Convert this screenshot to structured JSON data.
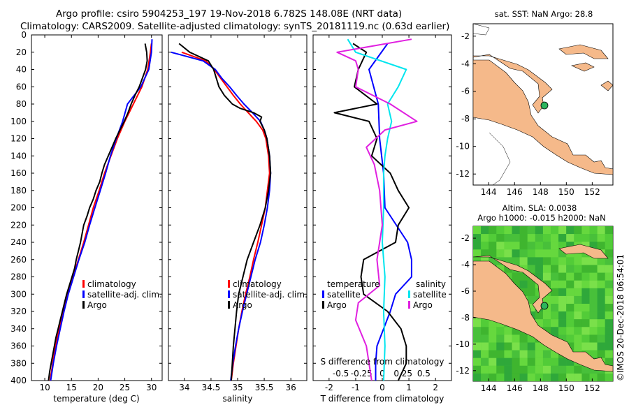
{
  "title": {
    "line1": "Argo profile: csiro 5904253_197 19-Nov-2018 6.782S 148.08E (NRT data)",
    "line2": "Climatology: CARS2009. Satellite-adjusted climatology: synTS_20181119.nc (0.63d earlier)"
  },
  "depth_ticks": [
    "0",
    "20",
    "40",
    "60",
    "80",
    "100",
    "120",
    "140",
    "160",
    "180",
    "200",
    "220",
    "240",
    "260",
    "280",
    "300",
    "320",
    "340",
    "360",
    "380",
    "400"
  ],
  "colors": {
    "climatology": "#ff0000",
    "satellite": "#0000ff",
    "argo": "#000000",
    "sat_salinity": "#00e5ee",
    "argo_salinity": "#e020e0",
    "land": "#f5b98a",
    "ocean_green": "#44c23a"
  },
  "chart_data": [
    {
      "type": "line",
      "name": "temperature",
      "xlabel": "temperature (deg C)",
      "ylabel": "",
      "xlim": [
        7.5,
        32
      ],
      "ylim": [
        400,
        0
      ],
      "x_ticks": [
        "10",
        "15",
        "20",
        "25",
        "30"
      ],
      "legend": [
        "climatology",
        "satellite-adj. clim.",
        "Argo"
      ],
      "series": [
        {
          "name": "climatology",
          "color": "#ff0000",
          "depth": [
            10,
            20,
            40,
            60,
            80,
            100,
            120,
            140,
            160,
            180,
            200,
            220,
            240,
            260,
            280,
            300,
            320,
            340,
            360,
            380,
            400
          ],
          "values": [
            30,
            29.8,
            29.3,
            28.2,
            26.6,
            25,
            23.6,
            22.4,
            21.2,
            20.2,
            19.1,
            18.2,
            17.3,
            16.3,
            15.3,
            14.3,
            13.4,
            12.7,
            12,
            11.5,
            11
          ]
        },
        {
          "name": "satellite-adj. clim.",
          "color": "#0000ff",
          "depth": [
            5,
            20,
            40,
            60,
            80,
            100,
            120,
            140,
            160,
            180,
            200,
            220,
            240,
            260,
            280,
            300,
            320,
            340,
            360,
            380,
            400
          ],
          "values": [
            30.1,
            30,
            29.5,
            28,
            25.5,
            24.6,
            23.4,
            22.3,
            21.4,
            20.4,
            19.4,
            18.4,
            17.5,
            16.4,
            15.4,
            14.4,
            13.6,
            12.9,
            12.2,
            11.6,
            11.1
          ]
        },
        {
          "name": "Argo",
          "color": "#000000",
          "depth": [
            10,
            20,
            30,
            40,
            50,
            60,
            70,
            80,
            90,
            100,
            110,
            120,
            130,
            140,
            150,
            160,
            170,
            180,
            190,
            200,
            210,
            220,
            230,
            240,
            250,
            260,
            270,
            280,
            290,
            300,
            310,
            320,
            330,
            340,
            350,
            360,
            370,
            380,
            390,
            400
          ],
          "values": [
            28.8,
            29.1,
            29.2,
            28.9,
            28.3,
            27.7,
            26.9,
            26.2,
            25.6,
            24.9,
            24.1,
            23.3,
            22.6,
            21.9,
            21.2,
            20.7,
            20.3,
            19.6,
            19.1,
            18.4,
            17.9,
            17.3,
            17,
            16.7,
            16.3,
            15.9,
            15.6,
            15.1,
            14.6,
            14.1,
            13.7,
            13.3,
            12.9,
            12.5,
            12.1,
            11.8,
            11.5,
            11.2,
            10.9,
            10.7
          ]
        }
      ]
    },
    {
      "type": "line",
      "name": "salinity",
      "xlabel": "salinity",
      "ylabel": "",
      "xlim": [
        33.7,
        36.3
      ],
      "ylim": [
        400,
        0
      ],
      "x_ticks": [
        "34",
        "34.5",
        "35",
        "35.5",
        "36"
      ],
      "legend": [
        "climatology",
        "satellite-adj. clim.",
        "Argo"
      ],
      "series": [
        {
          "name": "climatology",
          "color": "#ff0000",
          "depth": [
            20,
            30,
            40,
            50,
            60,
            70,
            80,
            90,
            100,
            110,
            120,
            140,
            160,
            180,
            200,
            220,
            240,
            260,
            280,
            300,
            320,
            340,
            360,
            380,
            400
          ],
          "values": [
            33.95,
            34.4,
            34.56,
            34.68,
            34.8,
            34.92,
            35.05,
            35.2,
            35.35,
            35.47,
            35.53,
            35.58,
            35.6,
            35.56,
            35.52,
            35.45,
            35.38,
            35.3,
            35.23,
            35.15,
            35.08,
            35.02,
            34.97,
            34.92,
            34.88
          ]
        },
        {
          "name": "satellite-adj. clim.",
          "color": "#0000ff",
          "depth": [
            20,
            30,
            40,
            50,
            60,
            70,
            80,
            90,
            100,
            110,
            120,
            140,
            160,
            180,
            200,
            220,
            240,
            260,
            280,
            300,
            320,
            340,
            360,
            380,
            400
          ],
          "values": [
            33.75,
            34.35,
            34.58,
            34.7,
            34.85,
            34.98,
            35.12,
            35.28,
            35.43,
            35.5,
            35.55,
            35.6,
            35.62,
            35.6,
            35.56,
            35.5,
            35.43,
            35.33,
            35.25,
            35.17,
            35.09,
            35.02,
            34.96,
            34.91,
            34.87
          ]
        },
        {
          "name": "Argo",
          "color": "#000000",
          "depth": [
            10,
            20,
            30,
            40,
            50,
            60,
            70,
            80,
            85,
            90,
            95,
            100,
            110,
            120,
            140,
            160,
            180,
            200,
            220,
            240,
            260,
            280,
            300,
            320,
            340,
            360,
            380,
            400
          ],
          "values": [
            33.9,
            34.1,
            34.45,
            34.55,
            34.6,
            34.65,
            34.75,
            34.9,
            35.05,
            35.3,
            35.45,
            35.42,
            35.5,
            35.55,
            35.6,
            35.62,
            35.58,
            35.52,
            35.42,
            35.3,
            35.18,
            35.1,
            35.02,
            34.98,
            34.95,
            34.92,
            34.9,
            34.88
          ]
        }
      ]
    },
    {
      "type": "line",
      "name": "difference from climatology",
      "xlabel": "T difference from climatology",
      "x2label": "S difference from climatology",
      "xlim": [
        -2.6,
        2.6
      ],
      "ylim": [
        400,
        0
      ],
      "x_ticks": [
        "-2",
        "-1",
        "0",
        "1",
        "2"
      ],
      "s_ticks": [
        "-0.5",
        "-0.25",
        "0",
        "0.25",
        "0.5"
      ],
      "legend_left": [
        "temperature",
        "satellite",
        "Argo"
      ],
      "legend_right": [
        "salinity",
        "satellite",
        "Argo"
      ],
      "series": [
        {
          "name": "temperature satellite",
          "color": "#0000ff",
          "depth": [
            10,
            40,
            80,
            120,
            160,
            200,
            240,
            260,
            280,
            300,
            320,
            340,
            360,
            380,
            400
          ],
          "values": [
            0.2,
            -0.5,
            -0.15,
            -0.1,
            0.05,
            0.1,
            0.95,
            1.1,
            1.1,
            0.5,
            0.3,
            0.05,
            -0.2,
            -0.25,
            -0.25
          ]
        },
        {
          "name": "temperature Argo",
          "color": "#000000",
          "depth": [
            10,
            20,
            40,
            60,
            80,
            90,
            100,
            120,
            140,
            160,
            180,
            200,
            220,
            240,
            260,
            280,
            300,
            320,
            340,
            360,
            380,
            400
          ],
          "values": [
            -1.1,
            -0.6,
            -0.9,
            -1.05,
            -0.2,
            -1.8,
            -0.5,
            -0.2,
            -0.4,
            0.3,
            0.6,
            1.0,
            0.6,
            0.5,
            -0.7,
            -0.8,
            -0.7,
            0.2,
            0.7,
            0.9,
            0.9,
            0.6
          ]
        },
        {
          "name": "salinity satellite",
          "color": "#00e5ee",
          "depth": [
            5,
            20,
            40,
            60,
            80,
            100,
            120,
            140,
            160,
            200,
            240,
            280,
            320,
            360,
            400
          ],
          "values": [
            -1.3,
            -1.0,
            0.9,
            0.6,
            0.2,
            0.35,
            0.2,
            0.1,
            0.05,
            0.05,
            0.0,
            0.1,
            0.05,
            0.1,
            0.05
          ]
        },
        {
          "name": "salinity Argo",
          "color": "#e020e0",
          "depth": [
            5,
            20,
            30,
            40,
            60,
            80,
            100,
            110,
            130,
            150,
            180,
            220,
            260,
            290,
            310,
            330,
            360,
            380,
            400
          ],
          "values": [
            1.1,
            -1.7,
            -1.0,
            -0.9,
            -1.0,
            0.3,
            1.3,
            0.1,
            -0.6,
            -0.3,
            -0.1,
            0.0,
            -0.2,
            -0.1,
            -0.9,
            -1.0,
            -0.6,
            -0.5,
            -0.4
          ]
        }
      ]
    }
  ],
  "maps": {
    "sst": {
      "title": "sat. SST: NaN Argo: 28.8",
      "x_ticks": [
        "144",
        "146",
        "148",
        "150",
        "152"
      ],
      "y_ticks": [
        "-2",
        "-4",
        "-6",
        "-8",
        "-10",
        "-12"
      ]
    },
    "sla": {
      "title1": "Altim. SLA: 0.0038",
      "title2": "Argo h1000: -0.015 h2000: NaN",
      "x_ticks": [
        "144",
        "146",
        "148",
        "150",
        "152"
      ],
      "y_ticks": [
        "-2",
        "-4",
        "-6",
        "-8",
        "-10",
        "-12"
      ]
    }
  },
  "watermark": "©IMOS 20-Dec-2018 06:54:01"
}
